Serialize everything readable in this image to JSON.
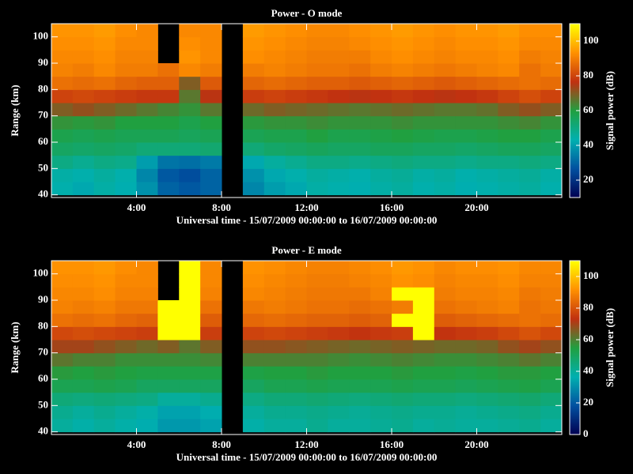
{
  "chart_data": [
    {
      "type": "heatmap",
      "title": "Power - O mode",
      "xlabel": "Universal time - 15/07/2009 00:00:00 to 16/07/2009 00:00:00",
      "ylabel": "Range (km)",
      "colorbar_label": "Signal power (dB)",
      "xlim": [
        0,
        24
      ],
      "xticks": [
        {
          "value": 4,
          "label": "4:00"
        },
        {
          "value": 8,
          "label": "8:00"
        },
        {
          "value": 12,
          "label": "12:00"
        },
        {
          "value": 16,
          "label": "16:00"
        },
        {
          "value": 20,
          "label": "20:00"
        }
      ],
      "ylim": [
        39,
        105
      ],
      "yticks": [
        40,
        50,
        60,
        70,
        80,
        90,
        100
      ],
      "clim": [
        10,
        110
      ],
      "cticks": [
        20,
        40,
        60,
        80,
        100
      ],
      "colormap": [
        "#000050",
        "#0050a0",
        "#00b0b0",
        "#20a040",
        "#c03010",
        "#ff9000",
        "#ffff00"
      ],
      "x": [
        0.5,
        1.5,
        2.5,
        3.5,
        4.5,
        5.5,
        6.5,
        7.5,
        8.5,
        9.5,
        10.5,
        11.5,
        12.5,
        13.5,
        14.5,
        15.5,
        16.5,
        17.5,
        18.5,
        19.5,
        20.5,
        21.5,
        22.5,
        23.5
      ],
      "y": [
        42.5,
        47.5,
        52.5,
        57.5,
        62.5,
        67.5,
        72.5,
        77.5,
        82.5,
        87.5,
        92.5,
        97.5,
        102.5
      ],
      "z": [
        [
          44,
          42,
          45,
          43,
          38,
          30,
          28,
          30,
          null,
          36,
          40,
          42,
          45,
          44,
          43,
          45,
          46,
          44,
          45,
          43,
          44,
          45,
          46,
          44
        ],
        [
          45,
          44,
          46,
          44,
          36,
          28,
          26,
          30,
          null,
          38,
          42,
          44,
          46,
          45,
          44,
          46,
          47,
          45,
          46,
          44,
          45,
          46,
          47,
          45
        ],
        [
          50,
          48,
          50,
          49,
          40,
          33,
          32,
          34,
          null,
          42,
          46,
          48,
          50,
          50,
          49,
          50,
          51,
          50,
          50,
          49,
          50,
          50,
          51,
          50
        ],
        [
          55,
          54,
          55,
          54,
          52,
          52,
          52,
          53,
          null,
          52,
          54,
          55,
          56,
          55,
          55,
          56,
          56,
          55,
          55,
          54,
          55,
          56,
          56,
          55
        ],
        [
          58,
          57,
          58,
          57,
          57,
          57,
          56,
          57,
          null,
          57,
          58,
          58,
          60,
          58,
          58,
          59,
          60,
          59,
          58,
          58,
          59,
          60,
          60,
          58
        ],
        [
          62,
          61,
          62,
          60,
          60,
          60,
          58,
          60,
          null,
          61,
          62,
          62,
          63,
          62,
          62,
          62,
          63,
          62,
          62,
          62,
          62,
          63,
          64,
          62
        ],
        [
          70,
          72,
          70,
          68,
          66,
          64,
          62,
          66,
          null,
          68,
          70,
          69,
          68,
          67,
          66,
          67,
          68,
          67,
          66,
          66,
          67,
          70,
          72,
          70
        ],
        [
          80,
          81,
          80,
          79,
          78,
          78,
          66,
          76,
          null,
          79,
          80,
          79,
          78,
          77,
          76,
          77,
          78,
          77,
          76,
          77,
          78,
          80,
          82,
          80
        ],
        [
          88,
          87,
          88,
          86,
          85,
          85,
          70,
          84,
          null,
          86,
          87,
          86,
          85,
          85,
          84,
          85,
          86,
          85,
          84,
          85,
          86,
          87,
          88,
          87
        ],
        [
          91,
          90,
          92,
          90,
          90,
          88,
          92,
          90,
          null,
          90,
          91,
          90,
          89,
          89,
          88,
          90,
          91,
          90,
          89,
          90,
          91,
          92,
          88,
          90
        ],
        [
          92,
          92,
          93,
          91,
          91,
          null,
          94,
          92,
          null,
          93,
          92,
          91,
          90,
          90,
          90,
          92,
          93,
          92,
          91,
          92,
          92,
          93,
          90,
          91
        ],
        [
          93,
          93,
          94,
          92,
          92,
          null,
          93,
          92,
          null,
          94,
          93,
          92,
          91,
          91,
          92,
          93,
          94,
          93,
          92,
          93,
          93,
          94,
          92,
          92
        ],
        [
          94,
          94,
          95,
          93,
          92,
          null,
          92,
          92,
          null,
          95,
          94,
          93,
          92,
          92,
          93,
          94,
          95,
          94,
          93,
          94,
          94,
          95,
          93,
          93
        ]
      ]
    },
    {
      "type": "heatmap",
      "title": "Power - E mode",
      "xlabel": "Universal time - 15/07/2009 00:00:00 to 16/07/2009 00:00:00",
      "ylabel": "Range (km)",
      "colorbar_label": "Signal power (dB)",
      "xlim": [
        0,
        24
      ],
      "xticks": [
        {
          "value": 4,
          "label": "4:00"
        },
        {
          "value": 8,
          "label": "8:00"
        },
        {
          "value": 12,
          "label": "12:00"
        },
        {
          "value": 16,
          "label": "16:00"
        },
        {
          "value": 20,
          "label": "20:00"
        }
      ],
      "ylim": [
        39,
        105
      ],
      "yticks": [
        40,
        50,
        60,
        70,
        80,
        90,
        100
      ],
      "clim": [
        0,
        110
      ],
      "cticks": [
        0,
        20,
        40,
        60,
        80,
        100
      ],
      "colormap": [
        "#000050",
        "#0050a0",
        "#00b0b0",
        "#20a040",
        "#c03010",
        "#ff9000",
        "#ffff00"
      ],
      "x": [
        0.5,
        1.5,
        2.5,
        3.5,
        4.5,
        5.5,
        6.5,
        7.5,
        8.5,
        9.5,
        10.5,
        11.5,
        12.5,
        13.5,
        14.5,
        15.5,
        16.5,
        17.5,
        18.5,
        19.5,
        20.5,
        21.5,
        22.5,
        23.5
      ],
      "y": [
        42.5,
        47.5,
        52.5,
        57.5,
        62.5,
        67.5,
        72.5,
        77.5,
        82.5,
        87.5,
        92.5,
        97.5,
        102.5
      ],
      "z": [
        [
          40,
          38,
          40,
          38,
          36,
          32,
          32,
          34,
          null,
          38,
          40,
          40,
          42,
          40,
          40,
          41,
          42,
          40,
          41,
          40,
          40,
          41,
          42,
          40
        ],
        [
          42,
          40,
          42,
          40,
          38,
          34,
          34,
          36,
          null,
          40,
          42,
          42,
          43,
          42,
          41,
          42,
          43,
          42,
          42,
          41,
          42,
          43,
          44,
          42
        ],
        [
          46,
          45,
          46,
          45,
          44,
          40,
          40,
          42,
          null,
          44,
          46,
          46,
          47,
          46,
          45,
          46,
          47,
          46,
          46,
          45,
          46,
          47,
          48,
          46
        ],
        [
          52,
          52,
          53,
          52,
          50,
          50,
          50,
          50,
          null,
          50,
          52,
          52,
          53,
          52,
          52,
          52,
          53,
          52,
          52,
          51,
          52,
          53,
          54,
          52
        ],
        [
          56,
          55,
          56,
          55,
          54,
          54,
          54,
          54,
          null,
          54,
          55,
          55,
          56,
          55,
          55,
          55,
          56,
          55,
          55,
          54,
          55,
          56,
          56,
          55
        ],
        [
          62,
          60,
          60,
          58,
          58,
          58,
          58,
          59,
          null,
          60,
          60,
          60,
          60,
          59,
          58,
          59,
          60,
          59,
          58,
          58,
          59,
          60,
          62,
          60
        ],
        [
          70,
          70,
          68,
          66,
          64,
          66,
          62,
          66,
          null,
          68,
          68,
          67,
          66,
          65,
          64,
          65,
          66,
          65,
          64,
          64,
          65,
          68,
          70,
          68
        ],
        [
          78,
          79,
          78,
          77,
          76,
          110,
          110,
          76,
          null,
          77,
          78,
          77,
          76,
          75,
          74,
          75,
          76,
          110,
          74,
          75,
          76,
          78,
          80,
          78
        ],
        [
          86,
          85,
          86,
          84,
          83,
          110,
          110,
          82,
          null,
          84,
          85,
          84,
          83,
          83,
          82,
          83,
          110,
          110,
          82,
          83,
          84,
          85,
          86,
          85
        ],
        [
          89,
          88,
          89,
          87,
          87,
          110,
          110,
          86,
          null,
          87,
          88,
          87,
          86,
          86,
          85,
          86,
          88,
          110,
          86,
          87,
          88,
          89,
          86,
          87
        ],
        [
          90,
          90,
          91,
          89,
          89,
          null,
          110,
          89,
          null,
          90,
          89,
          88,
          87,
          87,
          87,
          89,
          110,
          110,
          88,
          89,
          89,
          90,
          87,
          88
        ],
        [
          91,
          91,
          92,
          90,
          90,
          null,
          110,
          90,
          null,
          91,
          90,
          89,
          88,
          88,
          89,
          90,
          92,
          91,
          89,
          90,
          90,
          91,
          89,
          89
        ],
        [
          92,
          92,
          93,
          91,
          90,
          null,
          110,
          90,
          null,
          92,
          91,
          90,
          89,
          89,
          90,
          91,
          93,
          92,
          90,
          91,
          91,
          92,
          90,
          90
        ]
      ]
    }
  ]
}
